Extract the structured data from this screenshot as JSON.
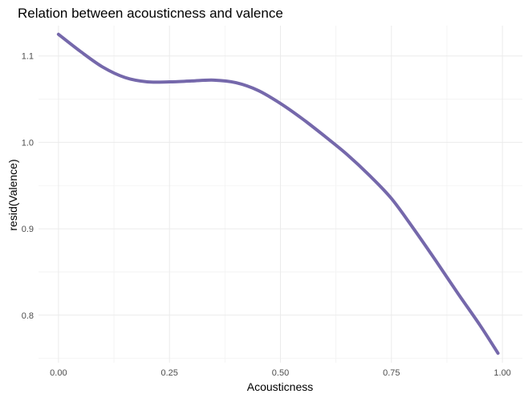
{
  "chart_data": {
    "type": "line",
    "title": "Relation between acousticness and valence",
    "xlabel": "Acousticness",
    "ylabel": "resid(Valence)",
    "xlim": [
      -0.045,
      1.045
    ],
    "ylim": [
      0.745,
      1.135
    ],
    "x_ticks": [
      0.0,
      0.25,
      0.5,
      0.75,
      1.0
    ],
    "x_tick_labels": [
      "0.00",
      "0.25",
      "0.50",
      "0.75",
      "1.00"
    ],
    "y_ticks": [
      0.8,
      0.9,
      1.0,
      1.1
    ],
    "y_tick_labels": [
      "0.8",
      "0.9",
      "1.0",
      "1.1"
    ],
    "grid": true,
    "legend": "none",
    "series": [
      {
        "color": "#7568ab",
        "x": [
          0.0,
          0.05,
          0.1,
          0.15,
          0.2,
          0.25,
          0.3,
          0.35,
          0.4,
          0.45,
          0.5,
          0.55,
          0.6,
          0.65,
          0.7,
          0.75,
          0.8,
          0.85,
          0.9,
          0.95,
          0.99
        ],
        "y": [
          1.125,
          1.105,
          1.087,
          1.075,
          1.07,
          1.07,
          1.071,
          1.072,
          1.069,
          1.06,
          1.045,
          1.027,
          1.007,
          0.986,
          0.962,
          0.935,
          0.9,
          0.863,
          0.825,
          0.788,
          0.756
        ]
      }
    ]
  }
}
